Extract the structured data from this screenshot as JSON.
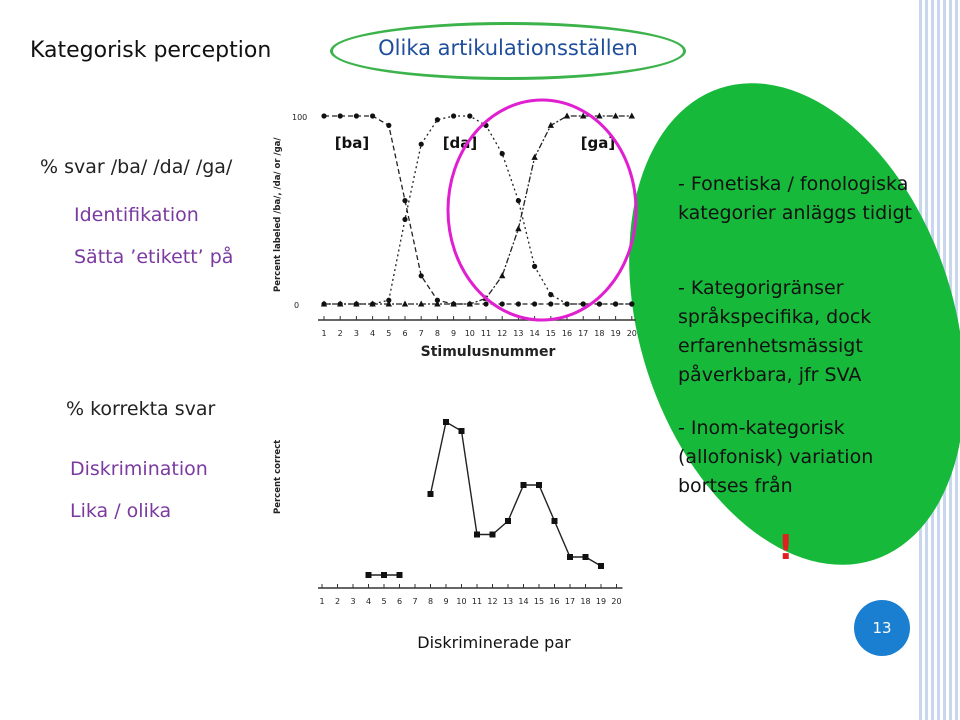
{
  "slide": {
    "title": "Kategorisk perception",
    "oval_label": "Olika artikulationsställen",
    "page_number": "13",
    "colors": {
      "accent_blue": "#1f4e9c",
      "purple": "#7a3aa0",
      "green": "#16b93a",
      "oval_green": "#3bb34a",
      "red": "#e02020"
    }
  },
  "left": {
    "ident_heading": "% svar /ba/ /da/ /ga/",
    "ident_label": "Identifikation",
    "ident_sub": "Sätta ’etikett’ på",
    "discr_heading": "% korrekta svar",
    "discr_label": "Diskrimination",
    "discr_sub": "Lika / olika"
  },
  "notes": {
    "line1": "- Fonetiska / fonologiska",
    "line2": "kategorier anläggs tidigt",
    "line3": "- Kategorigränser",
    "line4": "språkspecifika,  dock",
    "line5": "erfarenhetsmässigt",
    "line6": "påverkbara, jfr SVA",
    "line7": "- Inom-kategorisk",
    "line8": "(allofonisk)  variation",
    "line9": "bortses från",
    "exclaim": "!"
  },
  "chart_data": [
    {
      "type": "line",
      "ylabel": "Percent labeled /ba/, /da/ or /ga/",
      "xlabel": "Stimulusnummer",
      "x": [
        1,
        2,
        3,
        4,
        5,
        6,
        7,
        8,
        9,
        10,
        11,
        12,
        13,
        14,
        15,
        16,
        17,
        18,
        19,
        20
      ],
      "yticks": [
        "100",
        "0"
      ],
      "ylim": [
        0,
        100
      ],
      "categories_labels": [
        "[ba]",
        "[da]",
        "[ga]"
      ],
      "series": [
        {
          "name": "[ba]",
          "values": [
            100,
            100,
            100,
            100,
            95,
            55,
            15,
            2,
            0,
            0,
            0,
            0,
            0,
            0,
            0,
            0,
            0,
            0,
            0,
            0
          ]
        },
        {
          "name": "[da]",
          "values": [
            0,
            0,
            0,
            0,
            2,
            45,
            85,
            98,
            100,
            100,
            95,
            80,
            55,
            20,
            5,
            0,
            0,
            0,
            0,
            0
          ]
        },
        {
          "name": "[ga]",
          "values": [
            0,
            0,
            0,
            0,
            0,
            0,
            0,
            0,
            0,
            0,
            3,
            15,
            40,
            78,
            95,
            100,
            100,
            100,
            100,
            100
          ]
        }
      ],
      "grid": false
    },
    {
      "type": "line",
      "ylabel": "Percent correct",
      "xlabel": "Diskriminerade par",
      "x": [
        1,
        2,
        3,
        4,
        5,
        6,
        7,
        8,
        9,
        10,
        11,
        12,
        13,
        14,
        15,
        16,
        17,
        18,
        19,
        20
      ],
      "categories": [
        "1",
        "2",
        "3",
        "4",
        "5",
        "6",
        "7",
        "8",
        "9",
        "10",
        "11",
        "12",
        "13",
        "14",
        "15",
        "16",
        "17",
        "18",
        "19",
        "20"
      ],
      "series": [
        {
          "values": [
            null,
            null,
            null,
            51,
            51,
            51,
            null,
            69,
            85,
            83,
            60,
            60,
            63,
            71,
            71,
            63,
            55,
            55,
            53,
            null
          ]
        }
      ],
      "points": [
        [
          4,
          51
        ],
        [
          5,
          51
        ],
        [
          6,
          51
        ],
        [
          8,
          69
        ],
        [
          9,
          85
        ],
        [
          10,
          83
        ],
        [
          11,
          60
        ],
        [
          12,
          60
        ],
        [
          13,
          63
        ],
        [
          14,
          71
        ],
        [
          15,
          71
        ],
        [
          16,
          63
        ],
        [
          17,
          55
        ],
        [
          18,
          55
        ],
        [
          19,
          53
        ]
      ],
      "grid": false
    }
  ]
}
